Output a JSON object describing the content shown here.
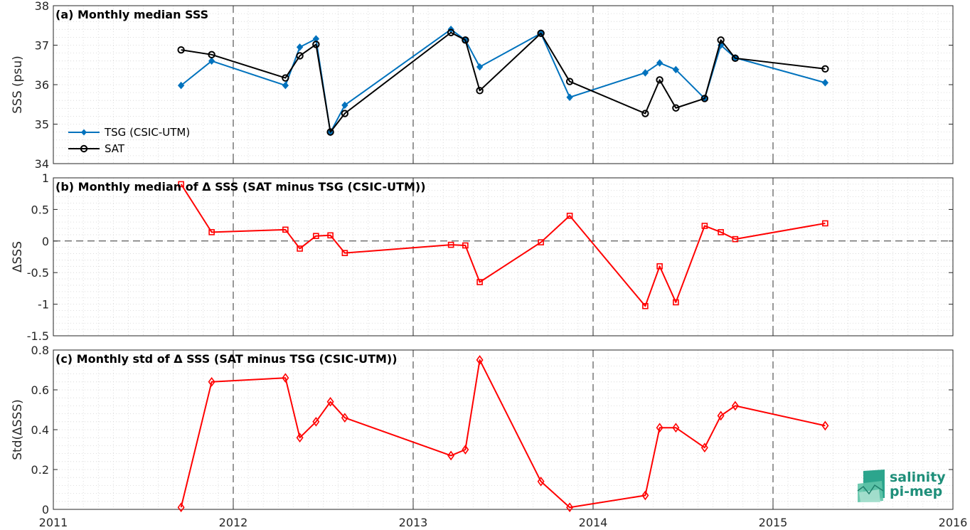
{
  "chart_data": [
    {
      "type": "line",
      "title": "(a) Monthly median SSS",
      "ylabel": "SSS (psu)",
      "xlim": [
        2011,
        2016
      ],
      "ylim": [
        34,
        38
      ],
      "yticks": [
        "34",
        "35",
        "36",
        "37",
        "38"
      ],
      "grid": "minor dotted, yearly dashed",
      "legend_position": "bottom-left",
      "series": [
        {
          "name": "TSG (CSIC-UTM)",
          "color": "#0072bd",
          "marker": "filled-diamond",
          "x": [
            2011.71,
            2011.88,
            2012.29,
            2012.37,
            2012.46,
            2012.54,
            2012.62,
            2013.21,
            2013.29,
            2013.37,
            2013.71,
            2013.87,
            2014.29,
            2014.37,
            2014.46,
            2014.62,
            2014.71,
            2014.79,
            2015.29
          ],
          "y": [
            35.98,
            36.6,
            35.98,
            36.95,
            37.16,
            34.79,
            35.48,
            37.4,
            37.13,
            36.45,
            37.3,
            35.68,
            36.3,
            36.55,
            36.38,
            35.65,
            37.0,
            36.68,
            36.05
          ]
        },
        {
          "name": "SAT",
          "color": "#000000",
          "marker": "open-circle",
          "x": [
            2011.71,
            2011.88,
            2012.29,
            2012.37,
            2012.46,
            2012.54,
            2012.62,
            2013.21,
            2013.29,
            2013.37,
            2013.71,
            2013.87,
            2014.29,
            2014.37,
            2014.46,
            2014.62,
            2014.71,
            2014.79,
            2015.29
          ],
          "y": [
            36.88,
            36.76,
            36.17,
            36.73,
            37.02,
            34.8,
            35.27,
            37.32,
            37.13,
            35.85,
            37.3,
            36.08,
            35.27,
            36.12,
            35.41,
            35.65,
            37.13,
            36.67,
            36.4
          ]
        }
      ]
    },
    {
      "type": "line",
      "title": "(b) Monthly median of Δ SSS (SAT minus TSG (CSIC-UTM))",
      "ylabel": "ΔSSS",
      "xlim": [
        2011,
        2016
      ],
      "ylim": [
        -1.5,
        1
      ],
      "yticks": [
        "-1.5",
        "-1",
        "-0.5",
        "0",
        "0.5",
        "1"
      ],
      "zero_line": true,
      "series": [
        {
          "color": "#ff0000",
          "marker": "open-square",
          "x": [
            2011.71,
            2011.88,
            2012.29,
            2012.37,
            2012.46,
            2012.54,
            2012.62,
            2013.21,
            2013.29,
            2013.37,
            2013.71,
            2013.87,
            2014.29,
            2014.37,
            2014.46,
            2014.62,
            2014.71,
            2014.79,
            2015.29
          ],
          "y": [
            0.9,
            0.14,
            0.18,
            -0.12,
            0.08,
            0.09,
            -0.19,
            -0.06,
            -0.07,
            -0.65,
            -0.02,
            0.4,
            -1.03,
            -0.4,
            -0.97,
            0.24,
            0.14,
            0.03,
            0.28
          ]
        }
      ]
    },
    {
      "type": "line",
      "title": "(c) Monthly std of Δ SSS (SAT minus TSG (CSIC-UTM))",
      "ylabel": "Std(ΔSSS)",
      "xlim": [
        2011,
        2016
      ],
      "ylim": [
        0,
        0.8
      ],
      "yticks": [
        "0",
        "0.2",
        "0.4",
        "0.6",
        "0.8"
      ],
      "xticks": [
        "2011",
        "2012",
        "2013",
        "2014",
        "2015",
        "2016"
      ],
      "series": [
        {
          "color": "#ff0000",
          "marker": "open-diamond",
          "x": [
            2011.71,
            2011.88,
            2012.29,
            2012.37,
            2012.46,
            2012.54,
            2012.62,
            2013.21,
            2013.29,
            2013.37,
            2013.71,
            2013.87,
            2014.29,
            2014.37,
            2014.46,
            2014.62,
            2014.71,
            2014.79,
            2015.29
          ],
          "y": [
            0.01,
            0.64,
            0.66,
            0.36,
            0.44,
            0.54,
            0.46,
            0.27,
            0.3,
            0.75,
            0.14,
            0.01,
            0.07,
            0.41,
            0.41,
            0.31,
            0.47,
            0.52,
            0.42
          ]
        }
      ]
    }
  ],
  "logo": {
    "line1": "salinity",
    "line2": "pi-mep"
  }
}
